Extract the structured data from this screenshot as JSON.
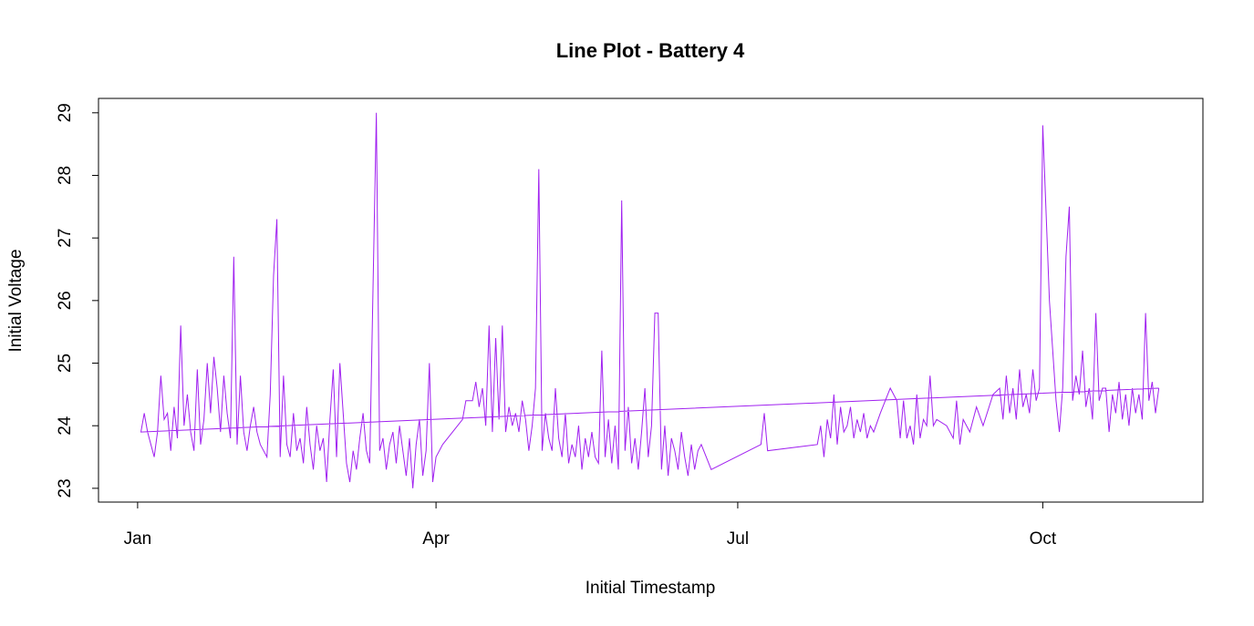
{
  "chart_data": {
    "type": "line",
    "title": "Line Plot - Battery 4",
    "x_label": "Initial Timestamp",
    "y_label": "Initial Voltage",
    "color": "#a020f0",
    "xlim": [
      -11.8,
      321.3
    ],
    "ylim": [
      22.78,
      29.23
    ],
    "xticks": [
      {
        "value": 0,
        "label": "Jan"
      },
      {
        "value": 90,
        "label": "Apr"
      },
      {
        "value": 181,
        "label": "Jul"
      },
      {
        "value": 273,
        "label": "Oct"
      }
    ],
    "yticks": [
      23,
      24,
      25,
      26,
      27,
      28,
      29
    ],
    "x": [
      308,
      1,
      2,
      3,
      4,
      5,
      6,
      7,
      8,
      9,
      10,
      11,
      12,
      13,
      14,
      15,
      16,
      17,
      18,
      19,
      20,
      21,
      22,
      23,
      24,
      25,
      26,
      27,
      28,
      29,
      30,
      31,
      32,
      33,
      34,
      35,
      36,
      37,
      38,
      39,
      40,
      41,
      42,
      43,
      44,
      45,
      46,
      47,
      48,
      49,
      50,
      51,
      52,
      53,
      54,
      55,
      56,
      57,
      58,
      59,
      60,
      61,
      62,
      63,
      64,
      65,
      66,
      67,
      68,
      69,
      70,
      71,
      72,
      73,
      74,
      75,
      76,
      77,
      78,
      79,
      80,
      81,
      82,
      83,
      84,
      85,
      86,
      87,
      88,
      89,
      90,
      92,
      95,
      98,
      99,
      101,
      102,
      103,
      104,
      105,
      106,
      107,
      108,
      109,
      110,
      111,
      112,
      113,
      114,
      115,
      116,
      117,
      118,
      119,
      120,
      121,
      122,
      123,
      124,
      125,
      126,
      127,
      128,
      129,
      130,
      131,
      132,
      133,
      134,
      135,
      136,
      137,
      138,
      139,
      140,
      141,
      142,
      143,
      144,
      145,
      146,
      147,
      148,
      149,
      150,
      151,
      152,
      153,
      154,
      155,
      156,
      157,
      158,
      159,
      160,
      161,
      162,
      163,
      164,
      165,
      166,
      167,
      168,
      169,
      170,
      173,
      188,
      189,
      190,
      205,
      206,
      207,
      208,
      209,
      210,
      211,
      212,
      213,
      214,
      215,
      216,
      217,
      218,
      219,
      220,
      221,
      222,
      224,
      227,
      229,
      230,
      231,
      232,
      233,
      234,
      235,
      236,
      237,
      238,
      239,
      240,
      241,
      244,
      246,
      247,
      248,
      249,
      251,
      253,
      255,
      258,
      260,
      261,
      262,
      263,
      264,
      265,
      266,
      267,
      268,
      269,
      270,
      271,
      272,
      273,
      275,
      277,
      278,
      279,
      280,
      281,
      282,
      283,
      284,
      285,
      286,
      287,
      288,
      289,
      290,
      291,
      292,
      293,
      294,
      295,
      296,
      297,
      298,
      299,
      300,
      301,
      302,
      303,
      304,
      305,
      306,
      307,
      308
    ],
    "values": [
      24.6,
      23.9,
      24.2,
      23.9,
      23.7,
      23.5,
      23.9,
      24.8,
      24.1,
      24.2,
      23.6,
      24.3,
      23.8,
      25.6,
      24.0,
      24.5,
      23.9,
      23.6,
      24.9,
      23.7,
      24.1,
      25.0,
      24.2,
      25.1,
      24.6,
      23.9,
      24.8,
      24.2,
      23.8,
      26.7,
      23.7,
      24.8,
      23.9,
      23.6,
      24.0,
      24.3,
      23.9,
      23.7,
      23.6,
      23.5,
      24.5,
      26.4,
      27.3,
      23.5,
      24.8,
      23.7,
      23.5,
      24.2,
      23.6,
      23.8,
      23.4,
      24.3,
      23.7,
      23.3,
      24.0,
      23.6,
      23.8,
      23.1,
      24.1,
      24.9,
      23.5,
      25.0,
      24.2,
      23.4,
      23.1,
      23.6,
      23.3,
      23.8,
      24.2,
      23.6,
      23.4,
      26.2,
      29.0,
      23.6,
      23.8,
      23.3,
      23.7,
      23.9,
      23.4,
      24.0,
      23.6,
      23.2,
      23.8,
      23.0,
      23.7,
      24.1,
      23.2,
      23.6,
      25.0,
      23.1,
      23.5,
      23.7,
      23.9,
      24.1,
      24.4,
      24.4,
      24.7,
      24.3,
      24.6,
      24.0,
      25.6,
      23.9,
      25.4,
      24.1,
      25.6,
      23.9,
      24.3,
      24.0,
      24.2,
      23.9,
      24.4,
      24.1,
      23.6,
      24.0,
      24.6,
      28.1,
      23.6,
      24.2,
      23.8,
      23.6,
      24.6,
      23.8,
      23.5,
      24.2,
      23.4,
      23.7,
      23.5,
      24.0,
      23.3,
      23.8,
      23.5,
      23.9,
      23.5,
      23.4,
      25.2,
      23.5,
      24.1,
      23.4,
      24.0,
      23.3,
      27.6,
      23.6,
      24.3,
      23.4,
      23.8,
      23.3,
      23.9,
      24.6,
      23.5,
      24.0,
      25.8,
      25.8,
      23.3,
      24.0,
      23.2,
      23.8,
      23.6,
      23.3,
      23.9,
      23.5,
      23.2,
      23.7,
      23.3,
      23.6,
      23.7,
      23.3,
      23.7,
      24.2,
      23.6,
      23.7,
      24.0,
      23.5,
      24.1,
      23.8,
      24.5,
      23.7,
      24.3,
      23.9,
      24.0,
      24.3,
      23.8,
      24.1,
      23.9,
      24.2,
      23.8,
      24.0,
      23.9,
      24.2,
      24.6,
      24.4,
      23.8,
      24.4,
      23.8,
      24.0,
      23.7,
      24.5,
      23.8,
      24.1,
      24.0,
      24.8,
      24.0,
      24.1,
      24.0,
      23.8,
      24.4,
      23.7,
      24.1,
      23.9,
      24.3,
      24.0,
      24.5,
      24.6,
      24.1,
      24.8,
      24.2,
      24.6,
      24.1,
      24.9,
      24.3,
      24.5,
      24.2,
      24.9,
      24.4,
      24.6,
      28.8,
      26.0,
      24.4,
      23.9,
      24.6,
      26.7,
      27.5,
      24.4,
      24.8,
      24.5,
      25.2,
      24.3,
      24.6,
      24.1,
      25.8,
      24.4,
      24.6,
      24.6,
      23.9,
      24.5,
      24.2,
      24.7,
      24.1,
      24.5,
      24.0,
      24.6,
      24.2,
      24.5,
      24.1,
      25.8,
      24.4,
      24.7,
      24.2,
      24.6
    ]
  }
}
